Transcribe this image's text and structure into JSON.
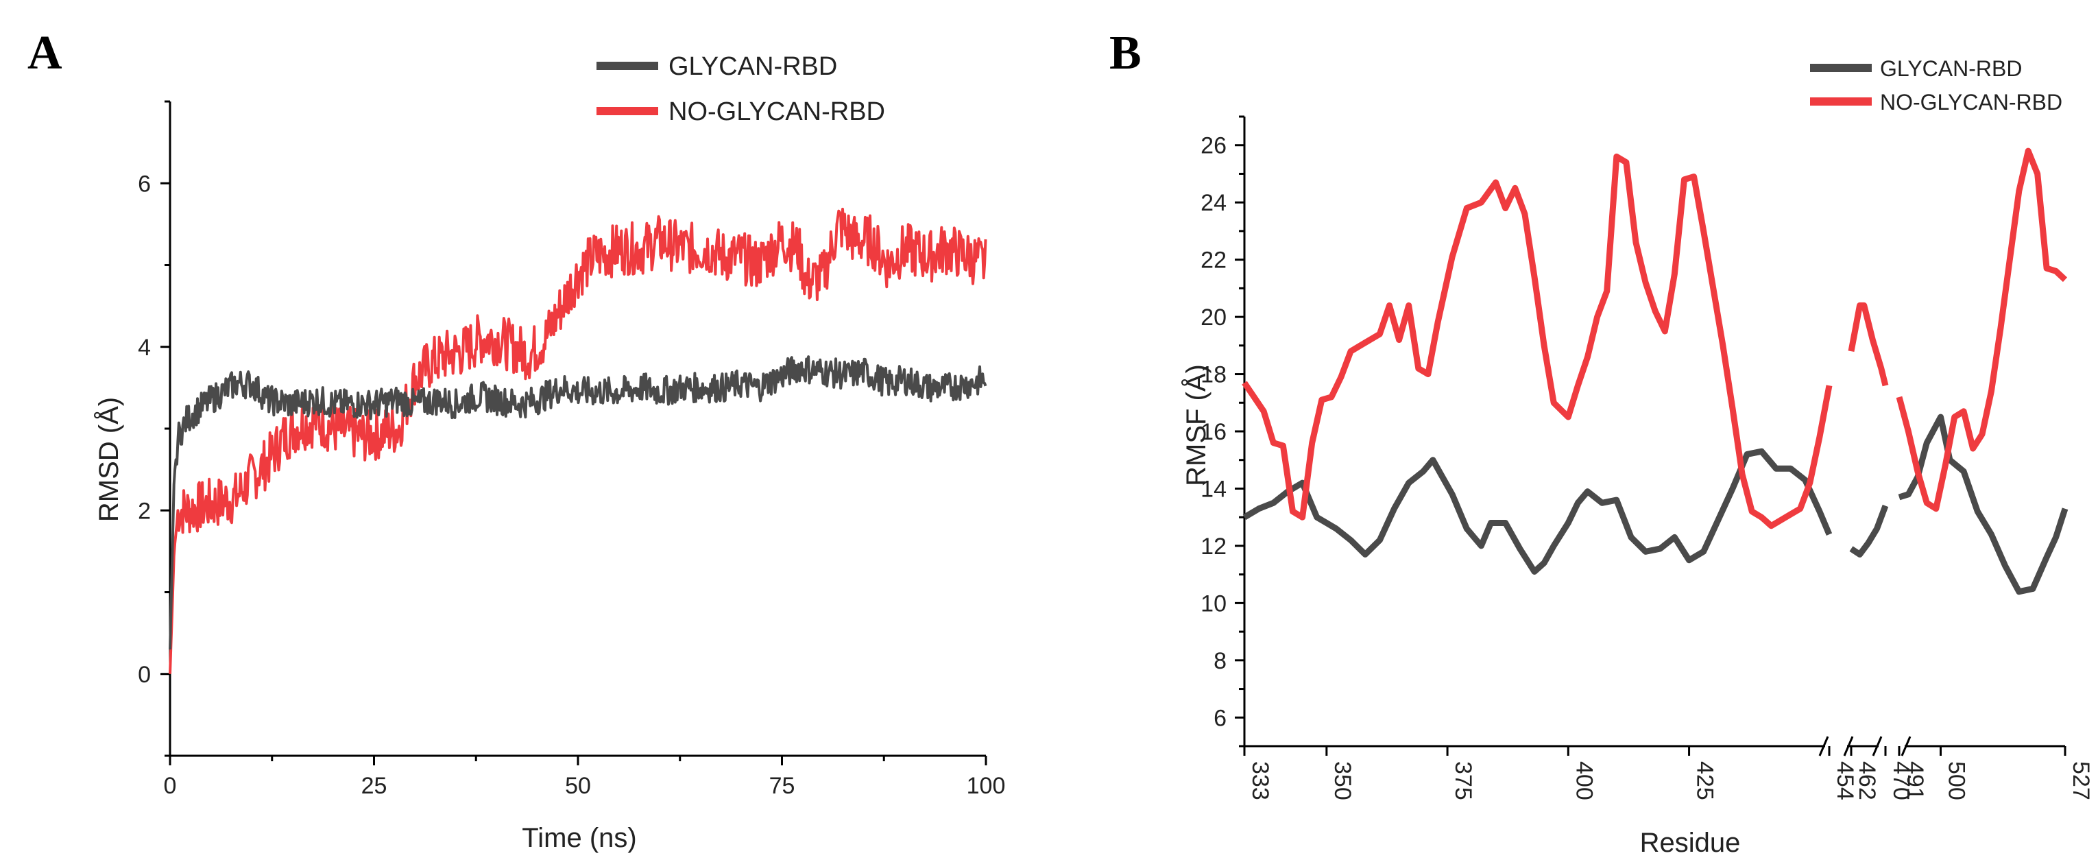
{
  "figure": {
    "panel_a_letter": "A",
    "panel_b_letter": "B"
  },
  "colors": {
    "glycan": "#4a4a4a",
    "no_glycan": "#ef3b3f"
  },
  "chart_data": [
    {
      "type": "line",
      "panel": "A",
      "title": "",
      "xlabel": "Time (ns)",
      "ylabel": "RMSD (Å)",
      "xlim": [
        0,
        100
      ],
      "ylim": [
        -1,
        7
      ],
      "xticks": [
        0,
        25,
        50,
        75,
        100
      ],
      "xtick_labels": [
        "0",
        "25",
        "50",
        "75",
        "100"
      ],
      "yticks": [
        0,
        2,
        4,
        6
      ],
      "ytick_labels": [
        "0",
        "2",
        "4",
        "6"
      ],
      "legend": [
        "GLYCAN-RBD",
        "NO-GLYCAN-RBD"
      ],
      "legend_position": "top-right",
      "series": [
        {
          "name": "GLYCAN-RBD",
          "x": [
            0,
            0.5,
            1,
            2,
            3,
            5,
            8,
            10,
            12,
            15,
            18,
            20,
            22,
            25,
            28,
            30,
            33,
            35,
            38,
            40,
            43,
            45,
            48,
            50,
            52,
            55,
            58,
            60,
            63,
            65,
            68,
            70,
            72,
            75,
            77,
            80,
            83,
            85,
            88,
            90,
            93,
            95,
            98,
            100
          ],
          "y": [
            0.3,
            2.4,
            2.9,
            3.1,
            3.2,
            3.35,
            3.55,
            3.55,
            3.35,
            3.3,
            3.35,
            3.3,
            3.3,
            3.3,
            3.35,
            3.3,
            3.35,
            3.3,
            3.4,
            3.35,
            3.3,
            3.35,
            3.5,
            3.45,
            3.45,
            3.45,
            3.5,
            3.45,
            3.5,
            3.5,
            3.5,
            3.55,
            3.5,
            3.65,
            3.75,
            3.7,
            3.65,
            3.7,
            3.55,
            3.6,
            3.5,
            3.5,
            3.55,
            3.6
          ]
        },
        {
          "name": "NO-GLYCAN-RBD",
          "x": [
            0,
            0.5,
            1,
            2,
            4,
            6,
            8,
            10,
            12,
            14,
            16,
            18,
            20,
            22,
            24,
            26,
            28,
            30,
            32,
            34,
            36,
            38,
            40,
            42,
            44,
            46,
            48,
            50,
            52,
            55,
            58,
            60,
            63,
            66,
            68,
            70,
            72,
            75,
            77,
            78,
            80,
            82,
            84,
            86,
            88,
            90,
            93,
            95,
            98,
            100
          ],
          "y": [
            0,
            1.5,
            2.0,
            2.0,
            2.05,
            2.1,
            2.15,
            2.4,
            2.6,
            2.9,
            3.05,
            3.1,
            3.0,
            2.95,
            2.9,
            2.95,
            3.0,
            3.6,
            3.8,
            3.9,
            3.95,
            4.1,
            4.1,
            4.0,
            3.9,
            4.1,
            4.5,
            4.9,
            5.1,
            5.2,
            5.2,
            5.3,
            5.2,
            5.2,
            5.1,
            5.1,
            5.0,
            5.3,
            5.2,
            4.8,
            4.85,
            5.5,
            5.3,
            5.3,
            5.0,
            5.2,
            5.1,
            5.2,
            5.1,
            5.0
          ]
        }
      ]
    },
    {
      "type": "line",
      "panel": "B",
      "title": "",
      "xlabel": "Residue",
      "ylabel": "RMSF (Å)",
      "xlim": [
        333,
        527
      ],
      "ylim": [
        5,
        27
      ],
      "xticks": [
        333,
        350,
        375,
        400,
        425,
        454,
        462,
        470,
        491,
        500,
        527
      ],
      "xtick_labels": [
        "333",
        "350",
        "375",
        "400",
        "425",
        "454",
        "462",
        "470",
        "491",
        "500",
        "527"
      ],
      "yticks": [
        6,
        8,
        10,
        12,
        14,
        16,
        18,
        20,
        22,
        24,
        26
      ],
      "ytick_labels": [
        "6",
        "8",
        "10",
        "12",
        "14",
        "16",
        "18",
        "20",
        "22",
        "24",
        "26"
      ],
      "axis_breaks": [
        "454-462",
        "470-491"
      ],
      "legend": [
        "GLYCAN-RBD",
        "NO-GLYCAN-RBD"
      ],
      "legend_position": "top-right",
      "series": [
        {
          "name": "GLYCAN-RBD",
          "segments": [
            {
              "x": [
                333,
                336,
                339,
                342,
                345,
                348,
                350,
                352,
                355,
                358,
                361,
                364,
                367,
                370,
                372,
                374,
                376,
                379,
                382,
                384,
                387,
                390,
                393,
                395,
                397,
                400,
                402,
                404,
                407,
                410,
                413,
                416,
                419,
                422,
                425,
                428,
                431,
                434,
                437,
                440,
                443,
                446,
                449,
                452,
                454
              ],
              "y": [
                13.0,
                13.3,
                13.5,
                13.9,
                14.2,
                13.0,
                12.8,
                12.6,
                12.2,
                11.7,
                12.2,
                13.3,
                14.2,
                14.6,
                15.0,
                14.4,
                13.8,
                12.6,
                12.0,
                12.8,
                12.8,
                11.9,
                11.1,
                11.4,
                12.0,
                12.8,
                13.5,
                13.9,
                13.5,
                13.6,
                12.3,
                11.8,
                11.9,
                12.3,
                11.5,
                11.8,
                12.9,
                14.0,
                15.2,
                15.3,
                14.7,
                14.7,
                14.3,
                13.2,
                12.4
              ]
            },
            {
              "x": [
                462,
                464,
                466,
                468,
                470
              ],
              "y": [
                11.9,
                11.7,
                12.1,
                12.6,
                13.4
              ]
            },
            {
              "x": [
                491,
                493,
                495,
                497,
                500,
                502,
                505,
                508,
                511,
                514,
                517,
                520,
                523,
                525,
                527
              ],
              "y": [
                13.7,
                13.8,
                14.4,
                15.6,
                16.5,
                15.0,
                14.6,
                13.2,
                12.4,
                11.3,
                10.4,
                10.5,
                11.6,
                12.3,
                13.3
              ]
            }
          ]
        },
        {
          "name": "NO-GLYCAN-RBD",
          "segments": [
            {
              "x": [
                333,
                335,
                337,
                339,
                341,
                343,
                345,
                347,
                349,
                351,
                353,
                355,
                358,
                361,
                363,
                365,
                367,
                369,
                371,
                373,
                376,
                379,
                382,
                385,
                387,
                389,
                391,
                393,
                395,
                397,
                400,
                402,
                404,
                406,
                408,
                410,
                412,
                414,
                416,
                418,
                420,
                422,
                424,
                426,
                428,
                430,
                432,
                434,
                436,
                438,
                440,
                442,
                444,
                446,
                448,
                450,
                452,
                454
              ],
              "y": [
                17.7,
                17.2,
                16.7,
                15.6,
                15.5,
                13.2,
                13.0,
                15.6,
                17.1,
                17.2,
                17.9,
                18.8,
                19.1,
                19.4,
                20.4,
                19.2,
                20.4,
                18.2,
                18.0,
                19.8,
                22.1,
                23.8,
                24.0,
                24.7,
                23.8,
                24.5,
                23.6,
                21.4,
                19.0,
                17.0,
                16.5,
                17.6,
                18.6,
                20.0,
                20.9,
                25.6,
                25.4,
                22.6,
                21.2,
                20.2,
                19.5,
                21.5,
                24.8,
                24.9,
                23.0,
                21.0,
                19.0,
                16.8,
                14.5,
                13.2,
                13.0,
                12.7,
                12.9,
                13.1,
                13.3,
                14.2,
                15.8,
                17.6
              ]
            },
            {
              "x": [
                462,
                463,
                464,
                465,
                467,
                469,
                470
              ],
              "y": [
                18.8,
                19.6,
                20.4,
                20.4,
                19.2,
                18.2,
                17.6
              ]
            },
            {
              "x": [
                491,
                493,
                495,
                497,
                499,
                501,
                503,
                505,
                507,
                509,
                511,
                513,
                515,
                517,
                519,
                521,
                523,
                525,
                527
              ],
              "y": [
                17.2,
                16.0,
                14.6,
                13.5,
                13.3,
                14.8,
                16.5,
                16.7,
                15.4,
                15.9,
                17.4,
                19.6,
                22.0,
                24.4,
                25.8,
                25.0,
                21.7,
                21.6,
                21.3
              ]
            }
          ]
        }
      ]
    }
  ]
}
